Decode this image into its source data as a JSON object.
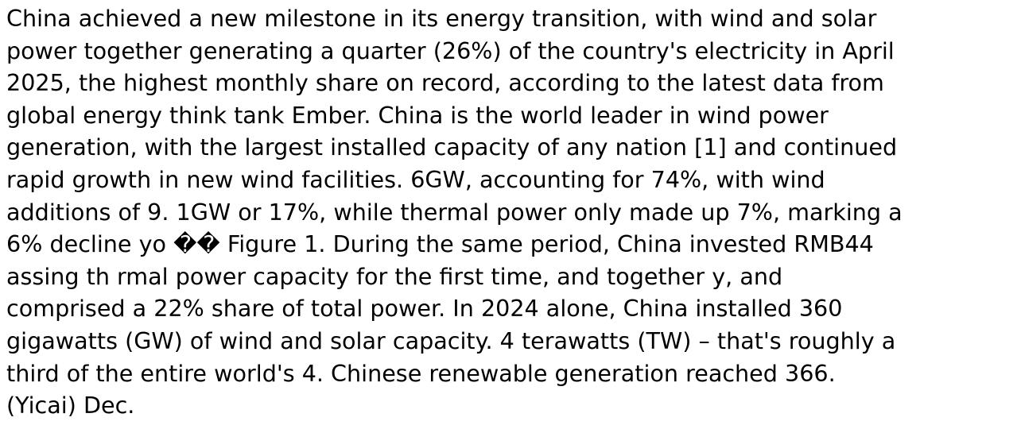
{
  "document": {
    "paragraph_lines": [
      "China achieved a new milestone in its energy transition, with wind and solar",
      "power together generating a quarter (26%) of the country's electricity in April",
      "2025, the highest monthly share on record, according to the latest data from",
      "global energy think tank Ember. China is the world leader in wind power",
      "generation, with the largest installed capacity of any nation [1] and continued",
      "rapid growth in new wind facilities. 6GW, accounting for 74%, with wind",
      "additions of 9. 1GW or 17%, while thermal power only made up 7%, marking a",
      "6% decline yo �� Figure 1. During the same period, China invested RMB44",
      "assing th rmal power capacity for the first time, and together y, and",
      "comprised a 22% share of total power. In 2024 alone, China installed 360",
      "gigawatts (GW) of wind and solar capacity. 4 terawatts (TW) – that's roughly a",
      "third of the entire world's 4. Chinese renewable generation reached 366.",
      "(Yicai) Dec."
    ]
  }
}
